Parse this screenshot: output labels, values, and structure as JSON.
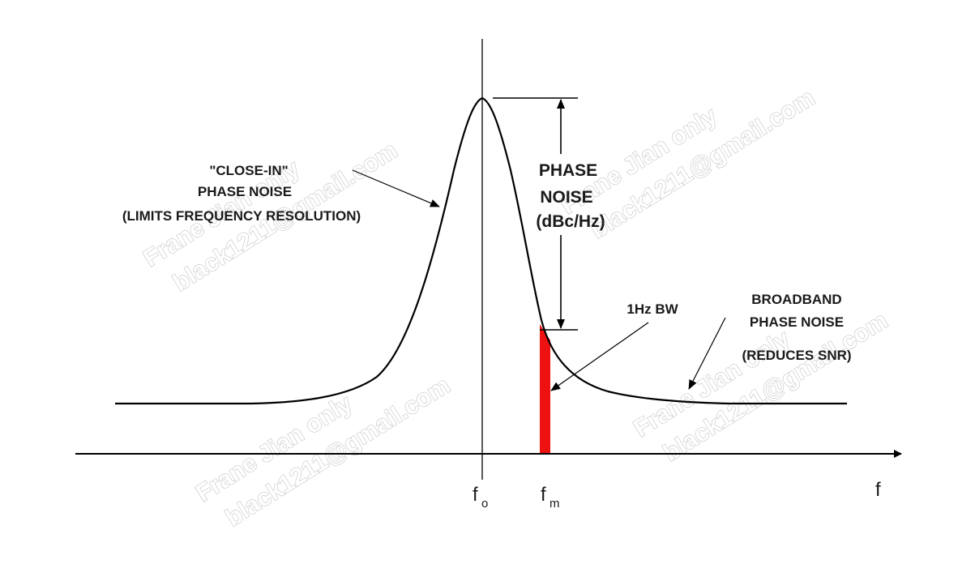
{
  "labels": {
    "close_in": [
      "\"CLOSE-IN\"",
      "PHASE NOISE",
      "(LIMITS FREQUENCY RESOLUTION)"
    ],
    "phase_noise": [
      "PHASE",
      "NOISE",
      "(dBc/Hz)"
    ],
    "bw": "1Hz BW",
    "broadband": [
      "BROADBAND",
      "PHASE NOISE",
      "(REDUCES SNR)"
    ]
  },
  "axis": {
    "f0_main": "f",
    "f0_sub": "o",
    "fm_main": "f",
    "fm_sub": "m",
    "f_label": "f"
  },
  "watermark": {
    "line1": "Frane Jian only",
    "line2": "black1211@gmail.com"
  },
  "colors": {
    "curve": "#000000",
    "bandwidth_bar": "#ee1111",
    "text": "#1a1a1a"
  }
}
